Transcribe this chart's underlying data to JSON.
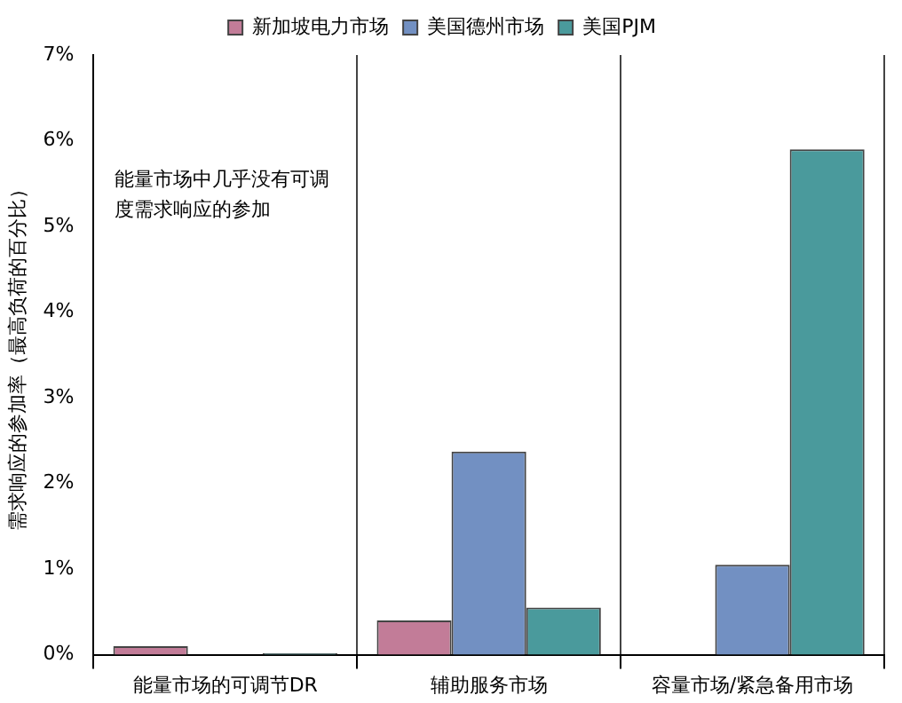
{
  "chart_data": {
    "type": "bar",
    "ylabel": "需求响应的参加率（最高负荷的百分比）",
    "categories": [
      "能量市场的可调节DR",
      "辅助服务市场",
      "容量市场/紧急备用市场"
    ],
    "series": [
      {
        "name": "新加坡电力市场",
        "color": "#c27c98",
        "values": [
          0.1,
          0.4,
          null
        ]
      },
      {
        "name": "美国德州市场",
        "color": "#7290c2",
        "values": [
          null,
          2.37,
          1.05
        ]
      },
      {
        "name": "美国PJM",
        "color": "#4a9a9c",
        "values": [
          0.02,
          0.55,
          5.9
        ]
      }
    ],
    "ylim": [
      0,
      7
    ],
    "yticks": [
      {
        "value": 0,
        "label": "0%"
      },
      {
        "value": 1,
        "label": "1%"
      },
      {
        "value": 2,
        "label": "2%"
      },
      {
        "value": 3,
        "label": "3%"
      },
      {
        "value": 4,
        "label": "4%"
      },
      {
        "value": 5,
        "label": "5%"
      },
      {
        "value": 6,
        "label": "6%"
      },
      {
        "value": 7,
        "label": "7%"
      }
    ],
    "grid": "x",
    "legend": "top",
    "annotations": [
      "能量市场中几乎没有可调度需求响应的参加"
    ]
  }
}
